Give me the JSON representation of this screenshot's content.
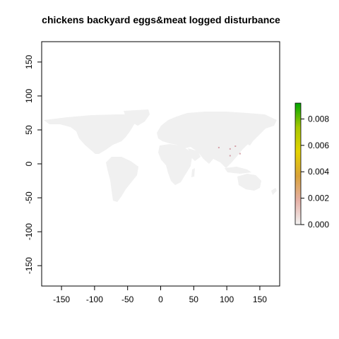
{
  "chart_data": {
    "type": "heatmap",
    "title": "chickens backyard eggs&meat logged disturbance",
    "xlabel": "",
    "ylabel": "",
    "xlim": [
      -180,
      180
    ],
    "ylim": [
      -180,
      180
    ],
    "x_ticks": [
      -150,
      -100,
      -50,
      0,
      50,
      100,
      150
    ],
    "y_ticks": [
      -150,
      -100,
      -50,
      0,
      50,
      100,
      150
    ],
    "legend": {
      "position": "right",
      "min": 0.0,
      "max": 0.0092,
      "ticks": [
        "0.000",
        "0.002",
        "0.004",
        "0.006",
        "0.008"
      ],
      "tick_values": [
        0.0,
        0.002,
        0.004,
        0.006,
        0.008
      ],
      "colors": [
        "#f2f2f2",
        "#e6b0a6",
        "#d9a23a",
        "#e4d300",
        "#a8c800",
        "#00a600"
      ]
    },
    "land_color": "#f0f0f0",
    "hotspots": [
      {
        "lon": 113,
        "lat": 26,
        "value": 0.0004
      },
      {
        "lon": 105,
        "lat": 22,
        "value": 0.0003
      },
      {
        "lon": 88,
        "lat": 24,
        "value": 0.0003
      },
      {
        "lon": 120,
        "lat": 15,
        "value": 0.0002
      },
      {
        "lon": 105,
        "lat": 12,
        "value": 0.0002
      }
    ]
  }
}
